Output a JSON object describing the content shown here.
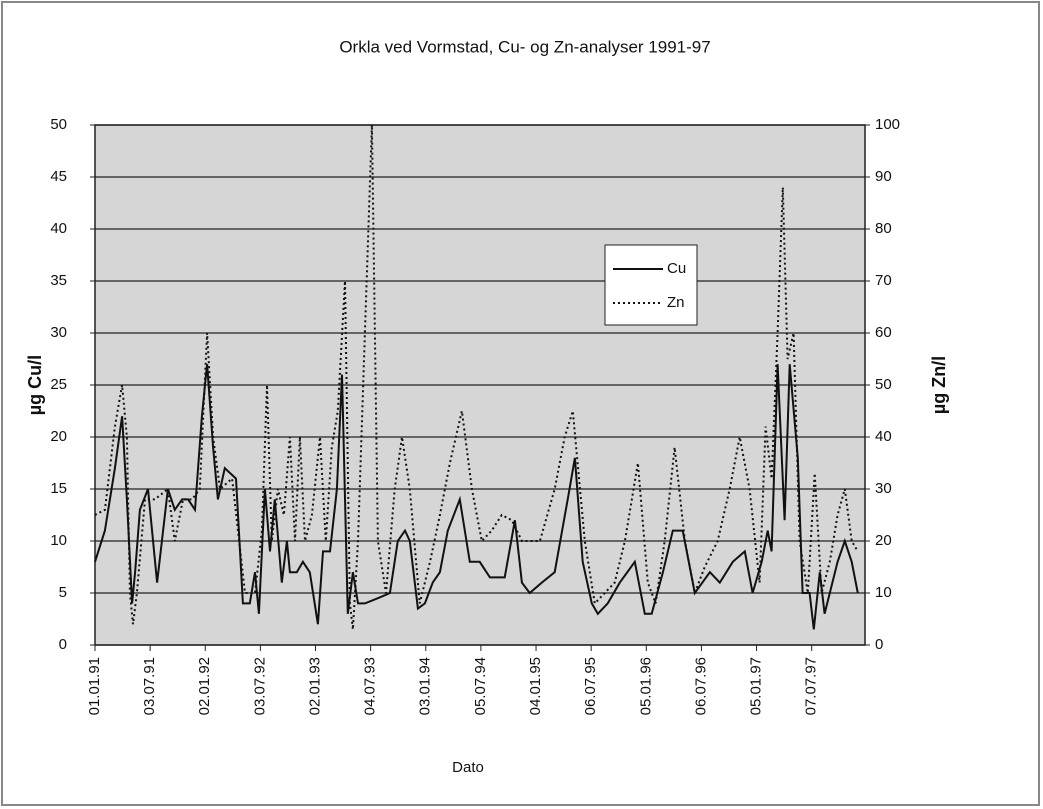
{
  "chart_data": {
    "type": "line",
    "title": "Orkla ved Vormstad, Cu- og Zn-analyser 1991-97",
    "x_label": "Dato",
    "y_label": "µg Cu/l",
    "y2_label": "µg Zn/l",
    "xlim": [
      "01.01.91",
      "31.12.97"
    ],
    "xticks": [
      "01.01.91",
      "03.07.91",
      "02.01.92",
      "03.07.92",
      "02.01.93",
      "04.07.93",
      "03.01.94",
      "05.07.94",
      "04.01.95",
      "06.07.95",
      "05.01.96",
      "06.07.96",
      "05.01.97",
      "07.07.97"
    ],
    "ylim": [
      0,
      50
    ],
    "yticks": [
      0,
      5,
      10,
      15,
      20,
      25,
      30,
      35,
      40,
      45,
      50
    ],
    "y2lim": [
      0,
      100
    ],
    "y2ticks": [
      0,
      10,
      20,
      30,
      40,
      50,
      60,
      70,
      80,
      90,
      100
    ],
    "grid": true,
    "legend": "right",
    "series": [
      {
        "name": "Cu",
        "color": "#111111",
        "style": "solid",
        "x": [
          "01.01.91",
          "03.02.91",
          "08.03.91",
          "01.04.91",
          "17.04.91",
          "04.05.91",
          "14.05.91",
          "30.05.91",
          "26.06.91",
          "26.07.91",
          "31.08.91",
          "23.09.91",
          "17.10.91",
          "06.11.91",
          "29.11.91",
          "22.12.91",
          "08.01.92",
          "28.01.92",
          "13.02.92",
          "07.03.92",
          "13.04.92",
          "06.05.92",
          "29.05.92",
          "15.06.92",
          "28.06.92",
          "18.07.92",
          "04.08.92",
          "20.08.92",
          "12.09.92",
          "29.09.92",
          "09.10.92",
          "01.11.92",
          "21.11.92",
          "14.12.92",
          "10.01.93",
          "27.01.93",
          "19.02.93",
          "14.03.93",
          "31.03.93",
          "19.04.93",
          "06.05.93",
          "23.05.93",
          "15.06.93",
          "28.07.93",
          "06.09.93",
          "02.10.93",
          "26.10.93",
          "11.11.93",
          "08.12.93",
          "31.12.93",
          "26.01.94",
          "19.02.94",
          "17.03.94",
          "26.04.94",
          "29.05.94",
          "01.07.94",
          "04.08.94",
          "22.09.94",
          "26.10.94",
          "18.11.94",
          "14.12.94",
          "23.01.95",
          "07.03.95",
          "19.04.95",
          "13.05.95",
          "08.06.95",
          "08.07.95",
          "28.07.95",
          "30.08.95",
          "09.10.95",
          "28.11.95",
          "31.12.95",
          "23.01.96",
          "29.02.96",
          "02.04.96",
          "05.05.96",
          "14.06.96",
          "03.08.96",
          "05.09.96",
          "18.10.96",
          "27.11.96",
          "23.12.96",
          "22.01.97",
          "11.02.97",
          "24.02.97",
          "16.03.97",
          "08.04.97",
          "25.04.97",
          "22.05.97",
          "07.06.97",
          "30.06.97",
          "14.07.97",
          "03.08.97",
          "19.08.97",
          "05.09.97",
          "01.10.97",
          "25.10.97",
          "17.11.97",
          "07.12.97"
        ],
        "values": [
          8,
          11,
          17,
          22,
          14,
          4,
          7,
          13,
          15,
          6,
          15,
          13,
          14,
          14,
          13,
          22,
          27,
          19,
          14,
          17,
          16,
          4,
          4,
          7,
          3,
          15,
          9,
          14,
          6,
          10,
          7,
          7,
          8,
          7,
          2,
          9,
          9,
          15,
          26,
          3,
          7,
          4,
          4,
          4.5,
          5,
          10,
          11,
          10,
          3.5,
          4,
          6,
          7,
          11,
          14,
          8,
          8,
          6.5,
          6.5,
          12,
          6,
          5,
          6,
          7,
          14,
          18,
          8,
          4,
          3,
          4,
          6,
          8,
          3,
          3,
          7,
          11,
          11,
          5,
          7,
          6,
          8,
          9,
          5,
          8,
          11,
          9,
          27,
          12,
          27,
          18,
          5,
          5,
          1.5,
          7,
          3,
          5,
          8,
          10,
          8,
          5
        ]
      },
      {
        "name": "Zn",
        "color": "#111111",
        "style": "dotted",
        "axis": "y2",
        "x": [
          "01.01.91",
          "03.02.91",
          "08.03.91",
          "01.04.91",
          "17.04.91",
          "27.04.91",
          "07.05.91",
          "20.05.91",
          "16.06.91",
          "19.07.91",
          "31.08.91",
          "23.09.91",
          "20.10.91",
          "19.11.91",
          "15.12.91",
          "08.01.92",
          "28.01.92",
          "20.02.92",
          "31.03.92",
          "13.05.92",
          "15.06.92",
          "08.07.92",
          "25.07.92",
          "10.08.92",
          "30.08.92",
          "19.09.92",
          "09.10.92",
          "26.10.92",
          "11.11.92",
          "28.11.92",
          "21.12.92",
          "17.01.93",
          "05.02.93",
          "25.02.93",
          "17.03.93",
          "10.04.93",
          "26.04.93",
          "06.05.93",
          "23.05.93",
          "15.06.93",
          "08.07.93",
          "28.07.93",
          "24.08.93",
          "22.09.93",
          "16.10.93",
          "11.11.93",
          "14.12.93",
          "17.01.94",
          "19.02.94",
          "24.03.94",
          "03.05.94",
          "05.06.94",
          "08.07.94",
          "10.08.94",
          "12.09.94",
          "16.10.94",
          "18.11.94",
          "14.12.94",
          "17.01.95",
          "07.03.95",
          "09.04.95",
          "06.05.95",
          "15.06.95",
          "18.07.95",
          "20.08.95",
          "22.09.95",
          "26.10.95",
          "08.12.95",
          "10.01.96",
          "05.02.96",
          "06.03.96",
          "08.04.96",
          "12.05.96",
          "14.06.96",
          "17.07.96",
          "29.08.96",
          "08.10.96",
          "10.11.96",
          "13.12.96",
          "15.01.97",
          "04.02.97",
          "24.02.97",
          "16.03.97",
          "02.04.97",
          "18.04.97",
          "08.05.97",
          "28.05.97",
          "24.06.97",
          "17.07.97",
          "09.08.97",
          "05.09.97",
          "01.10.97",
          "25.10.97",
          "17.11.97",
          "07.12.97"
        ],
        "values": [
          25,
          26,
          42,
          50,
          40,
          10,
          4,
          10,
          28,
          28,
          30,
          20,
          28,
          28,
          30,
          60,
          40,
          30,
          32,
          10,
          10,
          22,
          50,
          20,
          30,
          25,
          40,
          20,
          40,
          20,
          25,
          40,
          20,
          38,
          45,
          70,
          8,
          3,
          20,
          60,
          100,
          20,
          10,
          30,
          40,
          30,
          8,
          16,
          25,
          35,
          45,
          30,
          20,
          22,
          25,
          24,
          20,
          20,
          20,
          30,
          40,
          45,
          20,
          8,
          10,
          12,
          20,
          35,
          12,
          8,
          20,
          38,
          20,
          10,
          15,
          20,
          30,
          40,
          30,
          12,
          42,
          32,
          60,
          88,
          55,
          60,
          20,
          10,
          33,
          10,
          16,
          25,
          30,
          20,
          18
        ]
      }
    ]
  }
}
